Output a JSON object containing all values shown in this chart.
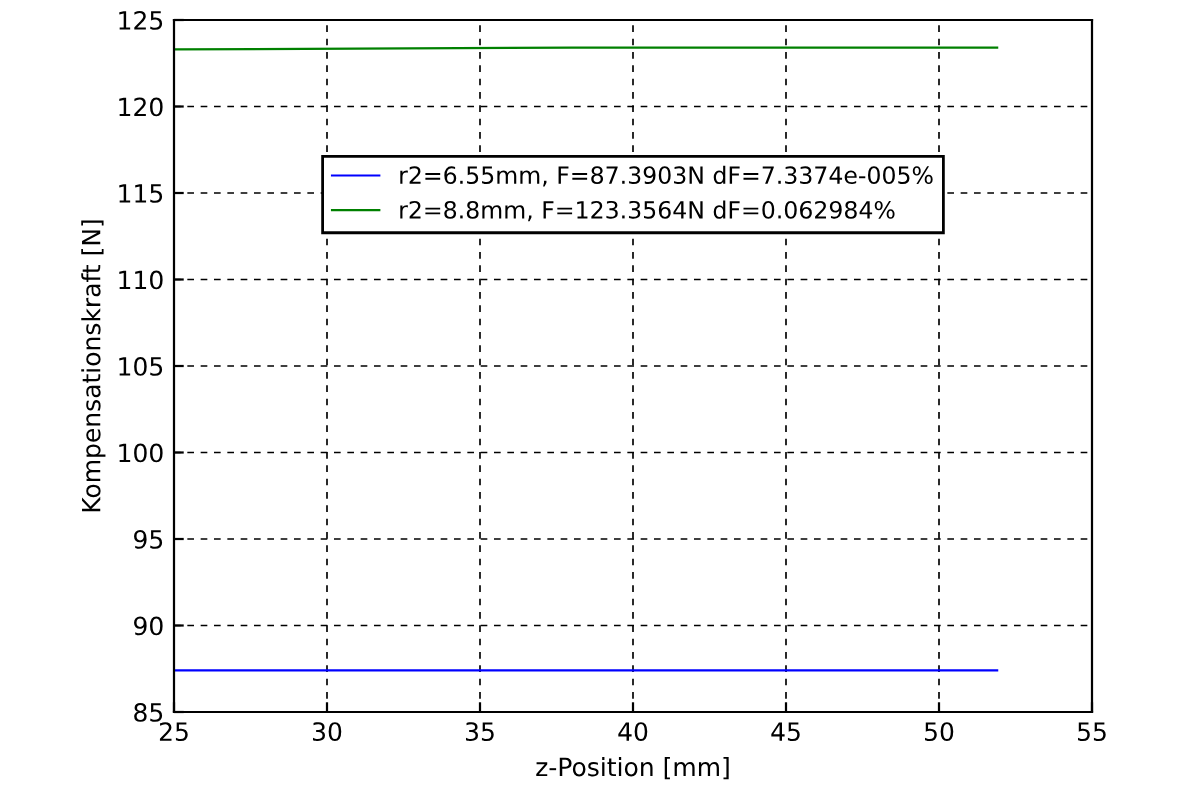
{
  "chart_data": {
    "type": "line",
    "xlabel": "z-Position [mm]",
    "ylabel": "Kompensationskraft [N]",
    "xlim": [
      25,
      55
    ],
    "xticks": [
      25,
      30,
      35,
      40,
      45,
      50,
      55
    ],
    "ylim": [
      85,
      125
    ],
    "yticks": [
      85,
      90,
      95,
      100,
      105,
      110,
      115,
      120,
      125
    ],
    "grid": true,
    "line_style": "solid",
    "marker": "none",
    "legend": "top",
    "series": [
      {
        "name": "r2=6.55mm, F=87.3903N dF=7.3374e-005%",
        "color": "#0000ff",
        "x": [
          25,
          51.9
        ],
        "values": [
          87.4,
          87.4
        ]
      },
      {
        "name": "r2=8.8mm, F=123.3564N dF=0.062984%",
        "color": "#008000",
        "x": [
          25,
          38,
          51.9
        ],
        "values": [
          123.3,
          123.4,
          123.4
        ]
      }
    ]
  }
}
